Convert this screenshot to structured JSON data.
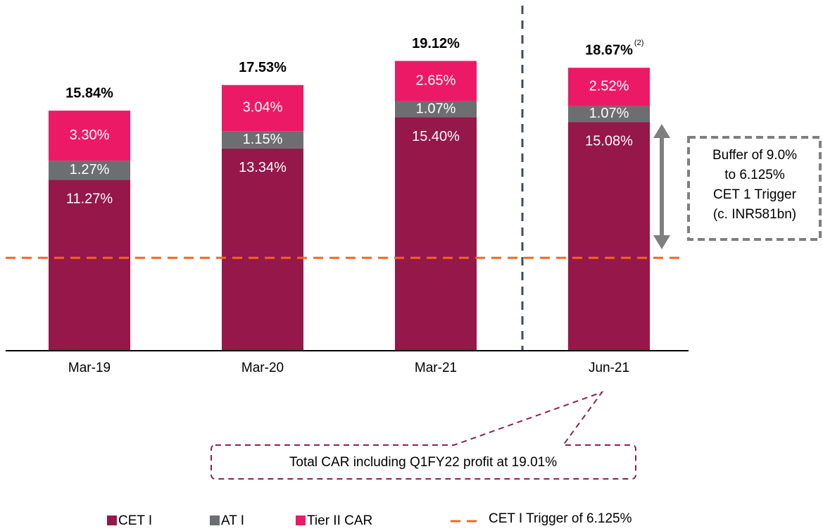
{
  "chart_data": {
    "type": "bar",
    "stacked": true,
    "categories": [
      "Mar-19",
      "Mar-20",
      "Mar-21",
      "Jun-21"
    ],
    "series": [
      {
        "name": "CET I",
        "color": "#96174a",
        "values": [
          11.27,
          13.34,
          15.4,
          15.08
        ],
        "value_labels": [
          "11.27%",
          "13.34%",
          "15.40%",
          "15.08%"
        ]
      },
      {
        "name": "AT I",
        "color": "#6d6e71",
        "values": [
          1.27,
          1.15,
          1.07,
          1.07
        ],
        "value_labels": [
          "1.27%",
          "1.15%",
          "1.07%",
          "1.07%"
        ]
      },
      {
        "name": "Tier II CAR",
        "color": "#ec1a66",
        "values": [
          3.3,
          3.04,
          2.65,
          2.52
        ],
        "value_labels": [
          "3.30%",
          "3.04%",
          "2.65%",
          "2.52%"
        ]
      }
    ],
    "totals": [
      15.84,
      17.53,
      19.12,
      18.67
    ],
    "total_labels": [
      "15.84%",
      "17.53%",
      "19.12%",
      "18.67%"
    ],
    "ylim": [
      0,
      23
    ],
    "reference_line": {
      "name": "CET I Trigger of 6.125%",
      "value": 6.125,
      "color": "#f26522"
    },
    "footnote": "(2)",
    "callout": "Total CAR including Q1FY22 profit at 19.01%",
    "buffer_box": [
      "Buffer of 9.0%",
      "to 6.125%",
      "CET 1 Trigger",
      "(c. INR581bn)"
    ]
  }
}
